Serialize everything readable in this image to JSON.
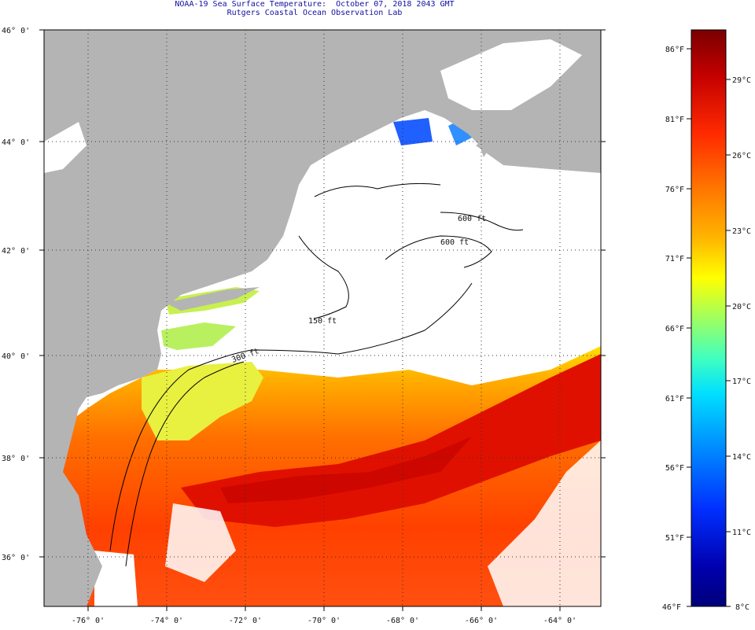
{
  "header": {
    "line1": "NOAA-19 Sea Surface Temperature:  October 07, 2018 2043 GMT",
    "line2": "Rutgers Coastal Ocean Observation Lab"
  },
  "map": {
    "lat_labels": [
      "46° 0'",
      "44° 0'",
      "42° 0'",
      "40° 0'",
      "38° 0'",
      "36° 0'"
    ],
    "lon_labels": [
      "-76° 0'",
      "-74° 0'",
      "-72° 0'",
      "-70° 0'",
      "-68° 0'",
      "-66° 0'",
      "-64° 0'"
    ],
    "isobaths": [
      "600 ft",
      "600 ft",
      "150 ft",
      "300 ft"
    ],
    "colors": {
      "land": "#b4b4b4",
      "cloud": "#ffffff",
      "contour": "#000000"
    }
  },
  "colorbar": {
    "fahrenheit": [
      "86°F",
      "81°F",
      "76°F",
      "71°F",
      "66°F",
      "61°F",
      "56°F",
      "51°F",
      "46°F"
    ],
    "celsius": [
      "29°C",
      "26°C",
      "23°C",
      "20°C",
      "17°C",
      "14°C",
      "11°C",
      "8°C"
    ],
    "scale_colors": [
      "#7a0000",
      "#c40000",
      "#ff2a00",
      "#ff7a00",
      "#ffb400",
      "#ffff00",
      "#a0ff60",
      "#40ffc0",
      "#00e0ff",
      "#0090ff",
      "#0030ff",
      "#0000b0",
      "#00007a"
    ]
  }
}
